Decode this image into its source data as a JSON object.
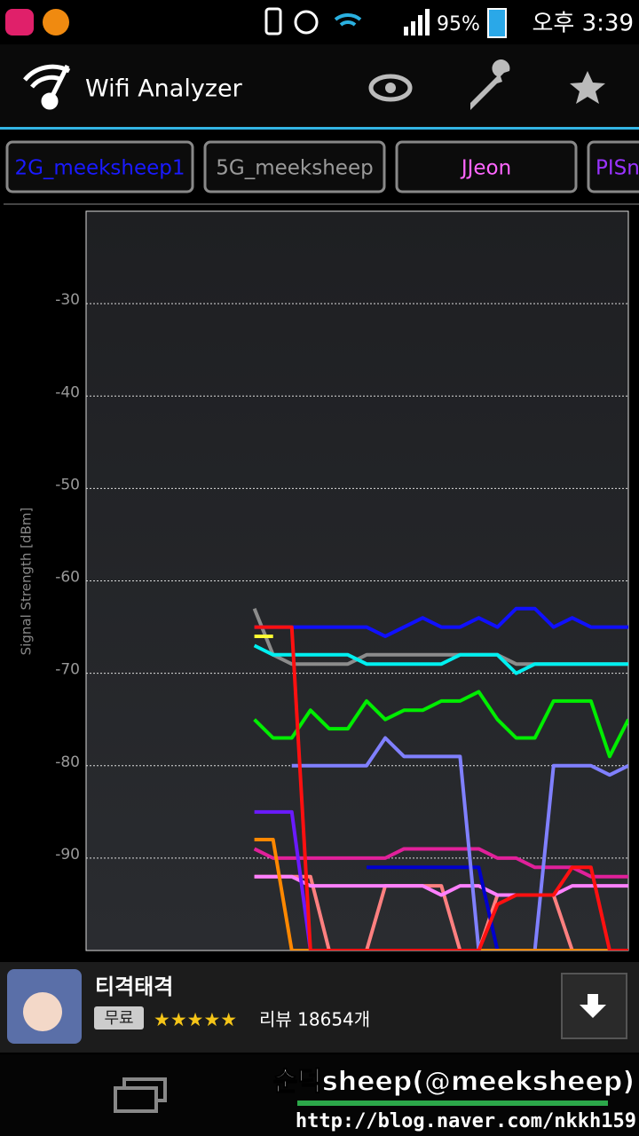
{
  "status_bar": {
    "battery": "95%",
    "time": "오후 3:39"
  },
  "app_bar": {
    "title": "Wifi Analyzer"
  },
  "tabs": [
    {
      "label": "2G_meeksheep1",
      "color": "#1a1aff"
    },
    {
      "label": "5G_meeksheep",
      "color": "#9a9a9a"
    },
    {
      "label": "JJeon",
      "color": "#ff66ff"
    },
    {
      "label": "PISn",
      "color": "#9a33ff"
    }
  ],
  "chart_data": {
    "type": "line",
    "y_label": "Signal Strength [dBm]",
    "x": [
      0,
      1,
      2,
      3,
      4,
      5,
      6,
      7,
      8,
      9,
      10,
      11,
      12,
      13,
      14,
      15,
      16,
      17,
      18,
      19,
      20
    ],
    "xlim": [
      -9,
      20
    ],
    "ylim": [
      -100,
      -20
    ],
    "yticks": [
      -30,
      -40,
      -50,
      -60,
      -70,
      -80,
      -90
    ],
    "grid": true,
    "series": [
      {
        "color": "#ff8080",
        "values": [
          -92,
          -92,
          -92,
          -92,
          -100,
          -100,
          -100,
          -93,
          -93,
          -93,
          -93,
          -100,
          -100,
          -94,
          -94,
          -94,
          -94,
          -100,
          -100,
          -100,
          -100
        ]
      },
      {
        "color": "#ff80ff",
        "values": [
          -92,
          -92,
          -92,
          -93,
          -93,
          -93,
          -93,
          -93,
          -93,
          -93,
          -94,
          -93,
          -93,
          -94,
          -94,
          -94,
          -94,
          -93,
          -93,
          -93,
          -93
        ]
      },
      {
        "color": "#e0209a",
        "values": [
          -89,
          -90,
          -90,
          -90,
          -90,
          -90,
          -90,
          -90,
          -89,
          -89,
          -89,
          -89,
          -89,
          -90,
          -90,
          -91,
          -91,
          -91,
          -92,
          -92,
          -92
        ]
      },
      {
        "color": "#0000cc",
        "values": [
          null,
          null,
          null,
          null,
          null,
          null,
          -91,
          -91,
          -91,
          -91,
          -91,
          -91,
          -91,
          -100,
          null,
          null,
          null,
          null,
          null,
          null,
          null
        ]
      },
      {
        "color": "#6a1aff",
        "values": [
          -85,
          -85,
          -85,
          -100,
          null,
          null,
          null,
          null,
          null,
          null,
          null,
          null,
          null,
          null,
          null,
          null,
          null,
          null,
          null,
          null,
          null
        ]
      },
      {
        "color": "#8080ff",
        "values": [
          null,
          null,
          -80,
          -80,
          -80,
          -80,
          -80,
          -77,
          -79,
          -79,
          -79,
          -79,
          -100,
          -100,
          -100,
          -100,
          -80,
          -80,
          -80,
          -81,
          -80
        ]
      },
      {
        "color": "#00ee00",
        "values": [
          -75,
          -77,
          -77,
          -74,
          -76,
          -76,
          -73,
          -75,
          -74,
          -74,
          -73,
          -73,
          -72,
          -75,
          -77,
          -77,
          -73,
          -73,
          -73,
          -79,
          -75
        ]
      },
      {
        "color": "#8c8c8c",
        "values": [
          -63,
          -68,
          -69,
          -69,
          -69,
          -69,
          -68,
          -68,
          -68,
          -68,
          -68,
          -68,
          -68,
          -68,
          -69,
          -69,
          -69,
          -69,
          -69,
          -69,
          -69
        ]
      },
      {
        "color": "#00f0f0",
        "values": [
          -67,
          -68,
          -68,
          -68,
          -68,
          -68,
          -69,
          -69,
          -69,
          -69,
          -69,
          -68,
          -68,
          -68,
          -70,
          -69,
          -69,
          -69,
          -69,
          -69,
          -69
        ]
      },
      {
        "color": "#1010ff",
        "values": [
          -65,
          -65,
          -65,
          -65,
          -65,
          -65,
          -65,
          -66,
          -65,
          -64,
          -65,
          -65,
          -64,
          -65,
          -63,
          -63,
          -65,
          -64,
          -65,
          -65,
          -65
        ]
      },
      {
        "color": "#ffff33",
        "values": [
          -66,
          -66,
          null,
          null,
          null,
          null,
          null,
          null,
          null,
          null,
          null,
          null,
          null,
          null,
          null,
          null,
          null,
          null,
          null,
          null,
          null
        ]
      },
      {
        "color": "#ff8800",
        "values": [
          -88,
          -88,
          -100,
          -100,
          -100,
          -100,
          -100,
          -100,
          -100,
          -100,
          -100,
          -100,
          -100,
          -100,
          -100,
          -100,
          -100,
          -100,
          -100,
          -100,
          -100
        ]
      },
      {
        "color": "#ff1010",
        "values": [
          -65,
          -65,
          -65,
          -100,
          -100,
          -100,
          -100,
          -100,
          -100,
          -100,
          -100,
          -100,
          -100,
          -95,
          -94,
          -94,
          -94,
          -91,
          -91,
          -100,
          -100
        ]
      }
    ]
  },
  "ad": {
    "title": "티격태격",
    "badge": "무료",
    "stars": "★★★★★",
    "reviews": "리뷰 18654개"
  },
  "watermark": {
    "name": "순덕sheep(@meeksheep)",
    "url": "http://blog.naver.com/nkkh159"
  }
}
